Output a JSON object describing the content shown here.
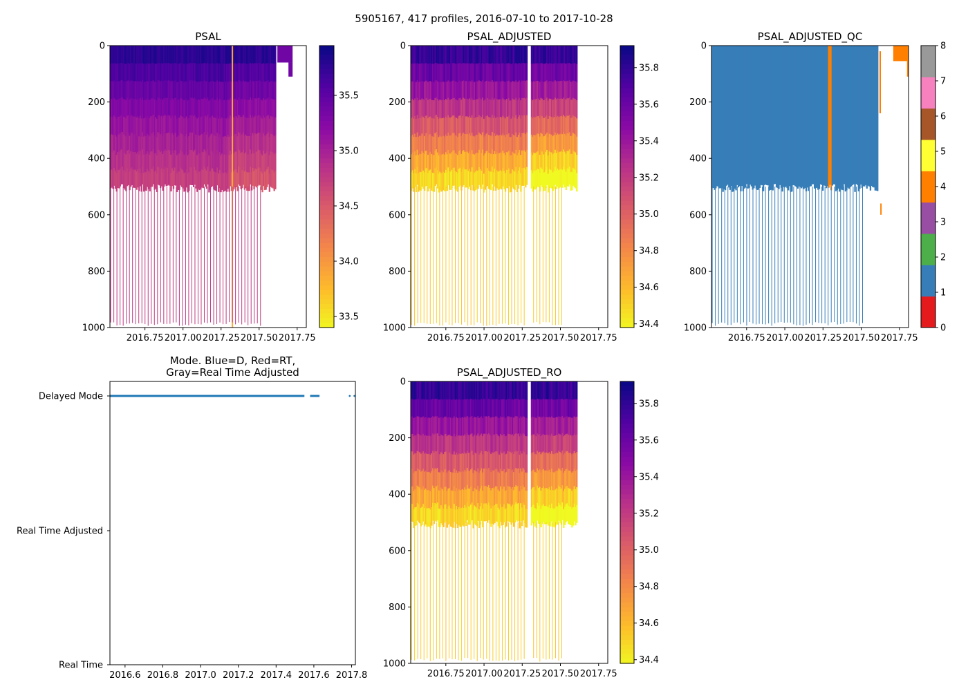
{
  "figure": {
    "suptitle": "5905167, 417 profiles, 2016-07-10 to 2017-10-28"
  },
  "chart_data": [
    {
      "id": "psal",
      "type": "heatmap",
      "title": "PSAL",
      "xlim": [
        2016.52,
        2017.81
      ],
      "xticks": [
        2016.75,
        2017.0,
        2017.25,
        2017.5,
        2017.75
      ],
      "xtick_labels": [
        "2016.75",
        "2017.00",
        "2017.25",
        "2017.50",
        "2017.75"
      ],
      "ylim": [
        1000,
        0
      ],
      "yticks": [
        0,
        200,
        400,
        600,
        800,
        1000
      ],
      "ytick_labels": [
        "0",
        "200",
        "400",
        "600",
        "800",
        "1000"
      ],
      "colormap": "plasma_r",
      "clim": [
        33.4,
        35.95
      ],
      "colorbar_ticks": [
        33.5,
        34.0,
        34.5,
        35.0,
        35.5
      ],
      "colorbar_tick_labels": [
        "33.5",
        "34.0",
        "34.5",
        "35.0",
        "35.5"
      ],
      "data_end": 2017.61,
      "deep_profile_end": 2017.52,
      "shallow_value": 35.8,
      "mid_value": 35.2,
      "deep_value": 34.75,
      "gap": null,
      "anomaly_x": 2017.32,
      "anomaly_value": 33.9,
      "late_x": [
        2017.62,
        2017.72
      ],
      "late_value": 35.4
    },
    {
      "id": "psal_adjusted",
      "type": "heatmap",
      "title": "PSAL_ADJUSTED",
      "xlim": [
        2016.52,
        2017.81
      ],
      "xticks": [
        2016.75,
        2017.0,
        2017.25,
        2017.5,
        2017.75
      ],
      "xtick_labels": [
        "2016.75",
        "2017.00",
        "2017.25",
        "2017.50",
        "2017.75"
      ],
      "ylim": [
        1000,
        0
      ],
      "yticks": [
        0,
        200,
        400,
        600,
        800,
        1000
      ],
      "ytick_labels": [
        "0",
        "200",
        "400",
        "600",
        "800",
        "1000"
      ],
      "colormap": "plasma_r",
      "clim": [
        34.38,
        35.92
      ],
      "colorbar_ticks": [
        34.4,
        34.6,
        34.8,
        35.0,
        35.2,
        35.4,
        35.6,
        35.8
      ],
      "colorbar_tick_labels": [
        "34.4",
        "34.6",
        "34.8",
        "35.0",
        "35.2",
        "35.4",
        "35.6",
        "35.8"
      ],
      "data_end": 2017.61,
      "deep_profile_end": 2017.52,
      "shallow_value": 35.8,
      "mid_value": 35.15,
      "deep_value": 34.5,
      "gap": [
        2017.28,
        2017.31
      ]
    },
    {
      "id": "psal_adjusted_qc",
      "type": "heatmap",
      "title": "PSAL_ADJUSTED_QC",
      "xlim": [
        2016.52,
        2017.81
      ],
      "xticks": [
        2016.75,
        2017.0,
        2017.25,
        2017.5,
        2017.75
      ],
      "xtick_labels": [
        "2016.75",
        "2017.00",
        "2017.25",
        "2017.50",
        "2017.75"
      ],
      "ylim": [
        1000,
        0
      ],
      "yticks": [
        0,
        200,
        400,
        600,
        800,
        1000
      ],
      "ytick_labels": [
        "0",
        "200",
        "400",
        "600",
        "800",
        "1000"
      ],
      "colormap": "qc_categorical",
      "qc_colors": [
        "#e41a1c",
        "#377eb8",
        "#4daf4a",
        "#984ea3",
        "#ff7f00",
        "#ffff33",
        "#a65628",
        "#f781bf",
        "#999999"
      ],
      "colorbar_ticks": [
        0,
        1,
        2,
        3,
        4,
        5,
        6,
        7,
        8
      ],
      "colorbar_tick_labels": [
        "0",
        "1",
        "2",
        "3",
        "4",
        "5",
        "6",
        "7",
        "8"
      ],
      "data_end": 2017.61,
      "deep_profile_end": 2017.52,
      "main_flag": 1,
      "flag4_band": [
        2017.28,
        2017.31
      ],
      "late_flag": 4
    },
    {
      "id": "mode",
      "type": "scatter",
      "title": "Mode. Blue=D, Red=RT,\nGray=Real Time Adjusted",
      "xlim": [
        2016.52,
        2017.82
      ],
      "xticks": [
        2016.6,
        2016.8,
        2017.0,
        2017.2,
        2017.4,
        2017.6,
        2017.8
      ],
      "xtick_labels": [
        "2016.6",
        "2016.8",
        "2017.0",
        "2017.2",
        "2017.4",
        "2017.6",
        "2017.8"
      ],
      "categories": [
        "Delayed Mode",
        "Real Time Adjusted",
        "Real Time"
      ],
      "series": [
        {
          "name": "D",
          "color": "#1f77b4",
          "segments": [
            [
              2016.52,
              2017.55
            ],
            [
              2017.58,
              2017.63
            ]
          ],
          "points": [
            2017.79,
            2017.815
          ],
          "level": "Delayed Mode"
        }
      ]
    },
    {
      "id": "psal_adjusted_ro",
      "type": "heatmap",
      "title": "PSAL_ADJUSTED_RO",
      "xlim": [
        2016.52,
        2017.81
      ],
      "xticks": [
        2016.75,
        2017.0,
        2017.25,
        2017.5,
        2017.75
      ],
      "xtick_labels": [
        "2016.75",
        "2017.00",
        "2017.25",
        "2017.50",
        "2017.75"
      ],
      "ylim": [
        1000,
        0
      ],
      "yticks": [
        0,
        200,
        400,
        600,
        800,
        1000
      ],
      "ytick_labels": [
        "0",
        "200",
        "400",
        "600",
        "800",
        "1000"
      ],
      "colormap": "plasma_r",
      "clim": [
        34.38,
        35.92
      ],
      "colorbar_ticks": [
        34.4,
        34.6,
        34.8,
        35.0,
        35.2,
        35.4,
        35.6,
        35.8
      ],
      "colorbar_tick_labels": [
        "34.4",
        "34.6",
        "34.8",
        "35.0",
        "35.2",
        "35.4",
        "35.6",
        "35.8"
      ],
      "data_end": 2017.61,
      "deep_profile_end": 2017.52,
      "shallow_value": 35.8,
      "mid_value": 35.15,
      "deep_value": 34.5,
      "gap": [
        2017.28,
        2017.31
      ]
    }
  ]
}
